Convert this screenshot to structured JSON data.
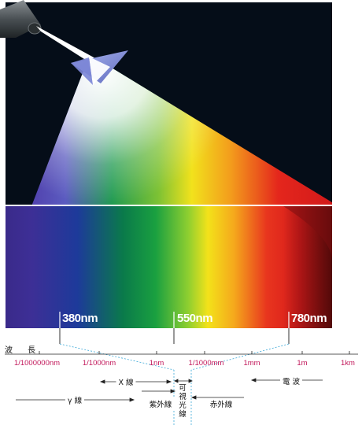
{
  "markers": [
    {
      "label": "380nm"
    },
    {
      "label": "550nm"
    },
    {
      "label": "780nm"
    }
  ],
  "scale": {
    "title": "波 長",
    "ticks": [
      "1/1000000nm",
      "1/1000nm",
      "1nm",
      "1/1000mm",
      "1mm",
      "1m",
      "1km"
    ]
  },
  "bands": {
    "xray": "X 線",
    "gamma": "γ 線",
    "ultraviolet": "紫外線",
    "visible": "可視光線",
    "infrared": "赤外線",
    "radio": "電 波"
  },
  "colors": {
    "background_dark": "#050d18",
    "tick_text": "#c2185b",
    "dotted_guide": "#3aa8d8"
  }
}
